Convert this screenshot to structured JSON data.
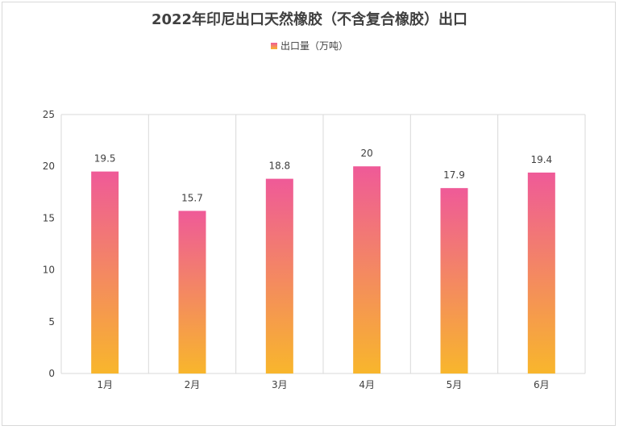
{
  "title": "2022年印尼出口天然橡胶（不含复合橡胶）出口",
  "legend": {
    "label": "出口量（万吨）"
  },
  "colors": {
    "bar_top": "#ef5a98",
    "bar_bottom": "#f8b62c",
    "grid": "#d9d9d9",
    "axis_text": "#404040"
  },
  "chart_data": {
    "type": "bar",
    "title": "2022年印尼出口天然橡胶（不含复合橡胶）出口",
    "categories": [
      "1月",
      "2月",
      "3月",
      "4月",
      "5月",
      "6月"
    ],
    "series": [
      {
        "name": "出口量（万吨）",
        "values": [
          19.5,
          15.7,
          18.8,
          20,
          17.9,
          19.4
        ]
      }
    ],
    "data_labels": [
      "19.5",
      "15.7",
      "18.8",
      "20",
      "17.9",
      "19.4"
    ],
    "ylim": [
      0,
      25
    ],
    "yticks": [
      0,
      5,
      10,
      15,
      20,
      25
    ],
    "grid": "vertical",
    "legend_position": "top-center"
  }
}
